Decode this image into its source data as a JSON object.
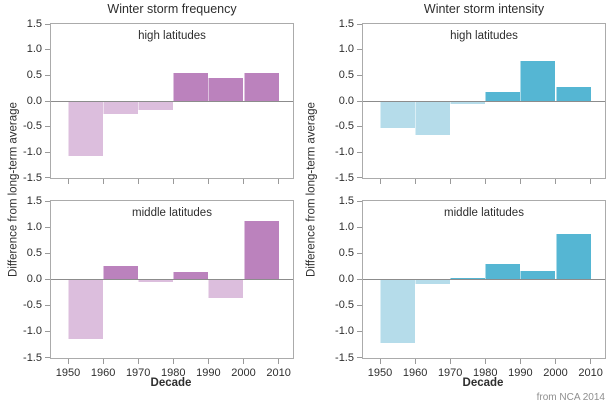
{
  "figure": {
    "left_title": "Winter storm frequency",
    "right_title": "Winter storm intensity",
    "y_axis_label": "Difference from long-term average",
    "x_axis_label": "Decade",
    "y_ticks": [
      "1.5",
      "1.0",
      "0.5",
      "0.0",
      "-0.5",
      "-1.0",
      "-1.5"
    ],
    "x_ticks": [
      "1950",
      "1960",
      "1970",
      "1980",
      "1990",
      "2000",
      "2010"
    ],
    "source": "from NCA 2014",
    "colors": {
      "purple_dark": "#bb82bd",
      "purple_light": "#dcbedd",
      "blue_dark": "#55b6d3",
      "blue_light": "#b5dcea",
      "frame": "#ababab",
      "zero_line": "#8c8c8c",
      "source_text": "#8f8f8f"
    }
  },
  "chart_data": [
    {
      "type": "bar",
      "title": "Winter storm frequency",
      "subtitle": "high latitudes",
      "categories": [
        "1950s",
        "1960s",
        "1970s",
        "1980s",
        "1990s",
        "2000s"
      ],
      "values": [
        -1.08,
        -0.26,
        -0.18,
        0.54,
        0.44,
        0.54
      ],
      "xlabel": "Decade",
      "ylabel": "Difference from long-term average",
      "ylim": [
        -1.5,
        1.5
      ],
      "x_ticks": [
        "1950",
        "1960",
        "1970",
        "1980",
        "1990",
        "2000",
        "2010"
      ],
      "grid": false,
      "legend": "none",
      "positive_color": "#bb82bd",
      "negative_color": "#dcbedd"
    },
    {
      "type": "bar",
      "title": "Winter storm intensity",
      "subtitle": "high latitudes",
      "categories": [
        "1950s",
        "1960s",
        "1970s",
        "1980s",
        "1990s",
        "2000s"
      ],
      "values": [
        -0.53,
        -0.67,
        -0.05,
        0.18,
        0.77,
        0.27
      ],
      "xlabel": "Decade",
      "ylabel": "Difference from long-term average",
      "ylim": [
        -1.5,
        1.5
      ],
      "x_ticks": [
        "1950",
        "1960",
        "1970",
        "1980",
        "1990",
        "2000",
        "2010"
      ],
      "grid": false,
      "legend": "none",
      "positive_color": "#55b6d3",
      "negative_color": "#b5dcea"
    },
    {
      "type": "bar",
      "title": "Winter storm frequency",
      "subtitle": "middle latitudes",
      "categories": [
        "1950s",
        "1960s",
        "1970s",
        "1980s",
        "1990s",
        "2000s"
      ],
      "values": [
        -1.13,
        0.25,
        -0.04,
        0.15,
        -0.36,
        1.12
      ],
      "xlabel": "Decade",
      "ylabel": "Difference from long-term average",
      "ylim": [
        -1.5,
        1.5
      ],
      "x_ticks": [
        "1950",
        "1960",
        "1970",
        "1980",
        "1990",
        "2000",
        "2010"
      ],
      "grid": false,
      "legend": "none",
      "positive_color": "#bb82bd",
      "negative_color": "#dcbedd"
    },
    {
      "type": "bar",
      "title": "Winter storm intensity",
      "subtitle": "middle latitudes",
      "categories": [
        "1950s",
        "1960s",
        "1970s",
        "1980s",
        "1990s",
        "2000s"
      ],
      "values": [
        -1.22,
        -0.08,
        0.03,
        0.3,
        0.17,
        0.86
      ],
      "xlabel": "Decade",
      "ylabel": "Difference from long-term average",
      "ylim": [
        -1.5,
        1.5
      ],
      "x_ticks": [
        "1950",
        "1960",
        "1970",
        "1980",
        "1990",
        "2000",
        "2010"
      ],
      "grid": false,
      "legend": "none",
      "positive_color": "#55b6d3",
      "negative_color": "#b5dcea"
    }
  ]
}
